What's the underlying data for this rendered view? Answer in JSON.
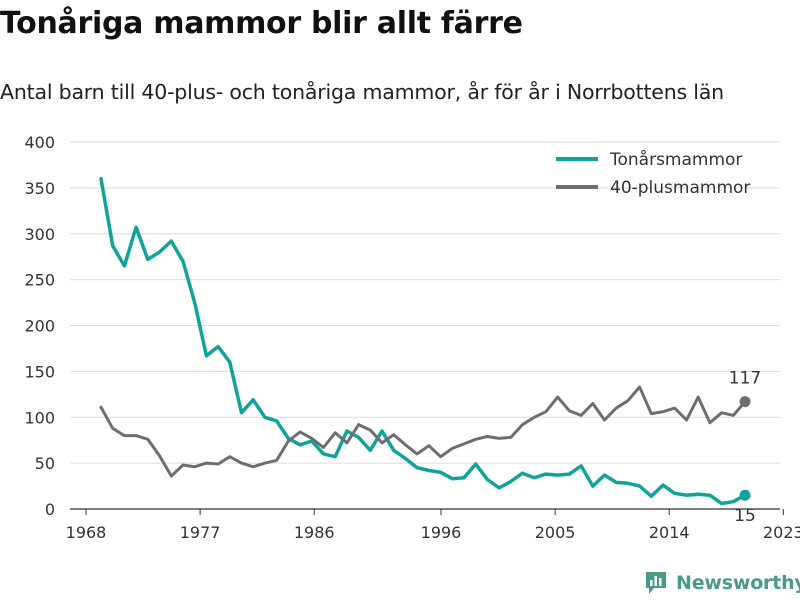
{
  "header": {
    "title": "Tonåriga mammor blir allt färre",
    "subtitle": "Antal barn till 40-plus- och tonåriga mammor, år för år i Norrbottens län"
  },
  "brand": {
    "name": "Newsworthy",
    "icon": "bar-chart-logo-icon"
  },
  "colors": {
    "teens": "#10a39a",
    "forty_plus": "#6e6e6e",
    "grid": "#dcdcdc",
    "brand": "#4a9a8a"
  },
  "chart_data": {
    "type": "line",
    "title": "Tonåriga mammor blir allt färre",
    "subtitle": "Antal barn till 40-plus- och tonåriga mammor, år för år i Norrbottens län",
    "xlabel": "",
    "ylabel": "",
    "xlim": [
      1968,
      2024
    ],
    "ylim": [
      0,
      400
    ],
    "x_ticks": [
      1968,
      1977,
      1986,
      1996,
      2005,
      2014,
      2023
    ],
    "y_ticks": [
      0,
      50,
      100,
      150,
      200,
      250,
      300,
      350,
      400
    ],
    "grid": true,
    "legend_position": "top-right",
    "x": [
      1968,
      1969,
      1970,
      1971,
      1972,
      1973,
      1974,
      1975,
      1976,
      1977,
      1978,
      1979,
      1980,
      1981,
      1982,
      1983,
      1984,
      1985,
      1986,
      1987,
      1988,
      1989,
      1990,
      1991,
      1992,
      1993,
      1994,
      1995,
      1996,
      1997,
      1998,
      1999,
      2000,
      2001,
      2002,
      2003,
      2004,
      2005,
      2006,
      2007,
      2008,
      2009,
      2010,
      2011,
      2012,
      2013,
      2014,
      2015,
      2016,
      2017,
      2018,
      2019,
      2020,
      2021,
      2022,
      2023
    ],
    "series": [
      {
        "name": "Tonårsmammor",
        "color": "#10a39a",
        "values": [
          360,
          287,
          265,
          307,
          272,
          280,
          292,
          270,
          225,
          167,
          177,
          160,
          105,
          119,
          100,
          96,
          77,
          70,
          74,
          60,
          57,
          85,
          78,
          64,
          85,
          64,
          55,
          45,
          42,
          40,
          33,
          34,
          49,
          32,
          23,
          30,
          39,
          34,
          38,
          37,
          38,
          47,
          25,
          37,
          29,
          28,
          25,
          14,
          26,
          17,
          15,
          16,
          15,
          6,
          8,
          15
        ],
        "end_label": "15"
      },
      {
        "name": "40-plusmammor",
        "color": "#6e6e6e",
        "values": [
          111,
          88,
          80,
          80,
          76,
          58,
          36,
          48,
          46,
          50,
          49,
          57,
          50,
          46,
          50,
          53,
          74,
          84,
          77,
          67,
          83,
          72,
          92,
          86,
          72,
          81,
          70,
          60,
          69,
          57,
          66,
          71,
          76,
          79,
          77,
          78,
          92,
          100,
          106,
          122,
          107,
          102,
          115,
          97,
          110,
          118,
          133,
          104,
          106,
          110,
          97,
          122,
          94,
          105,
          102,
          117
        ],
        "end_label": "117"
      }
    ]
  }
}
